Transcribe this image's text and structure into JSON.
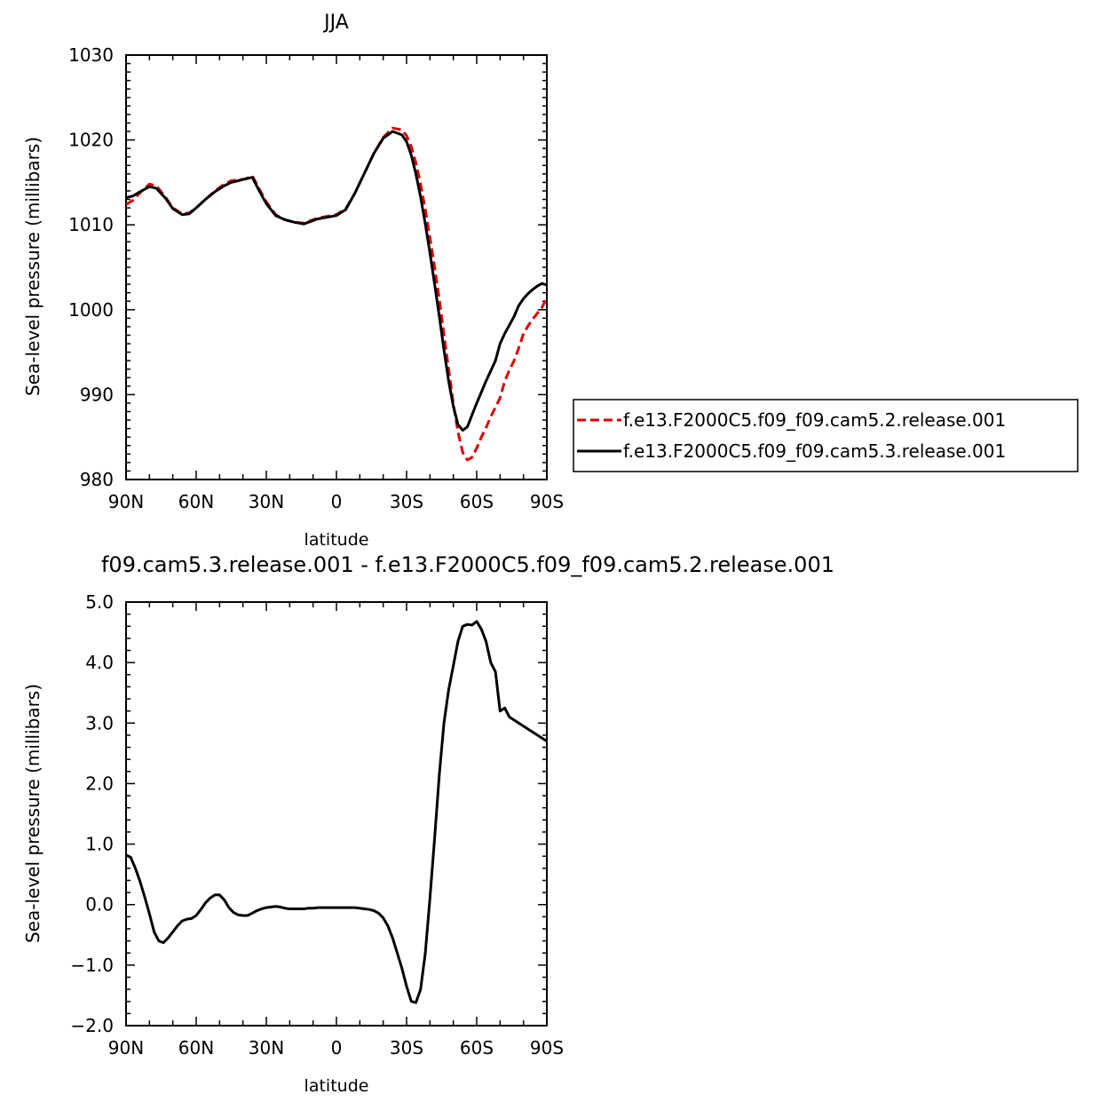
{
  "chart_data": [
    {
      "type": "line",
      "title": "JJA",
      "xlabel": "latitude",
      "ylabel": "Sea-level pressure (millibars)",
      "xlim": [
        90,
        -90
      ],
      "ylim": [
        980,
        1030
      ],
      "xticks": [
        90,
        60,
        30,
        0,
        -30,
        -60,
        -90
      ],
      "xticklabels": [
        "90N",
        "60N",
        "30N",
        "0",
        "30S",
        "60S",
        "90S"
      ],
      "yticks": [
        980,
        990,
        1000,
        1010,
        1020,
        1030
      ],
      "yticklabels": [
        "980",
        "990",
        "1000",
        "1010",
        "1020",
        "1030"
      ],
      "legend_position": "right",
      "series": [
        {
          "name": "f.e13.F2000C5.f09_f09.cam5.2.release.001",
          "color": "#dd0000",
          "dash": "dashed",
          "x": [
            90,
            87,
            84,
            80,
            77,
            73,
            70,
            66,
            63,
            60,
            56,
            52,
            48,
            45,
            42,
            39,
            36,
            33,
            30,
            26,
            22,
            18,
            14,
            12,
            8,
            4,
            0,
            -4,
            -8,
            -12,
            -16,
            -20,
            -24,
            -28,
            -30,
            -32,
            -34,
            -36,
            -38,
            -40,
            -42,
            -44,
            -46,
            -48,
            -50,
            -52,
            -54,
            -56,
            -58,
            -60,
            -62,
            -64,
            -66,
            -68,
            -70,
            -72,
            -74,
            -76,
            -78,
            -80,
            -82,
            -84,
            -86,
            -88,
            -90
          ],
          "y": [
            1012.4,
            1012.9,
            1013.8,
            1014.8,
            1014.6,
            1013.2,
            1012.0,
            1011.3,
            1011.4,
            1012.0,
            1013.0,
            1014.0,
            1014.8,
            1015.2,
            1015.3,
            1015.4,
            1015.8,
            1014.2,
            1012.7,
            1011.2,
            1010.6,
            1010.3,
            1010.2,
            1010.4,
            1010.8,
            1011.0,
            1011.2,
            1011.9,
            1013.8,
            1016.1,
            1018.4,
            1020.3,
            1021.4,
            1021.2,
            1020.5,
            1019.2,
            1017.3,
            1014.8,
            1011.8,
            1008.5,
            1005.0,
            1001.2,
            997.1,
            993.0,
            988.9,
            985.6,
            983.2,
            982.3,
            982.6,
            983.7,
            985.0,
            986.1,
            987.4,
            988.5,
            989.6,
            991.6,
            992.9,
            994.0,
            995.5,
            997.2,
            998.1,
            998.9,
            999.6,
            1000.3,
            1001.4
          ]
        },
        {
          "name": "f.e13.F2000C5.f09_f09.cam5.3.release.001",
          "color": "#000000",
          "dash": "solid",
          "x": [
            90,
            87,
            84,
            80,
            77,
            73,
            70,
            66,
            63,
            60,
            56,
            52,
            48,
            45,
            42,
            39,
            36,
            33,
            30,
            26,
            22,
            18,
            14,
            12,
            8,
            4,
            0,
            -4,
            -8,
            -12,
            -16,
            -20,
            -24,
            -28,
            -30,
            -32,
            -34,
            -36,
            -38,
            -40,
            -42,
            -44,
            -46,
            -48,
            -50,
            -52,
            -54,
            -56,
            -58,
            -60,
            -62,
            -64,
            -66,
            -68,
            -70,
            -72,
            -74,
            -76,
            -78,
            -80,
            -82,
            -84,
            -86,
            -88,
            -90
          ],
          "y": [
            1013.2,
            1013.4,
            1013.9,
            1014.5,
            1014.3,
            1013.1,
            1011.9,
            1011.2,
            1011.3,
            1012.0,
            1013.0,
            1013.9,
            1014.6,
            1015.0,
            1015.2,
            1015.4,
            1015.6,
            1014.0,
            1012.5,
            1011.1,
            1010.6,
            1010.3,
            1010.1,
            1010.3,
            1010.7,
            1010.9,
            1011.1,
            1011.8,
            1013.8,
            1016.1,
            1018.4,
            1020.2,
            1021.0,
            1020.6,
            1019.8,
            1018.2,
            1016.0,
            1013.3,
            1010.1,
            1006.7,
            1003.0,
            999.2,
            995.3,
            991.6,
            988.6,
            986.5,
            985.8,
            986.2,
            987.6,
            989.0,
            990.3,
            991.6,
            992.8,
            994.0,
            996.0,
            997.2,
            998.2,
            999.2,
            1000.5,
            1001.3,
            1001.9,
            1002.4,
            1002.8,
            1003.1,
            1002.9
          ]
        }
      ]
    },
    {
      "type": "line",
      "title": "f09.cam5.3.release.001 - f.e13.F2000C5.f09_f09.cam5.2.release.001",
      "xlabel": "latitude",
      "ylabel": "Sea-level pressure (millibars)",
      "xlim": [
        90,
        -90
      ],
      "ylim": [
        -2.0,
        5.0
      ],
      "xticks": [
        90,
        60,
        30,
        0,
        -30,
        -60,
        -90
      ],
      "xticklabels": [
        "90N",
        "60N",
        "30N",
        "0",
        "30S",
        "60S",
        "90S"
      ],
      "yticks": [
        -2.0,
        -1.0,
        0.0,
        1.0,
        2.0,
        3.0,
        4.0,
        5.0
      ],
      "yticklabels": [
        "-2.0",
        "-1.0",
        "0.0",
        "1.0",
        "2.0",
        "3.0",
        "4.0",
        "5.0"
      ],
      "series": [
        {
          "color": "#000000",
          "dash": "solid",
          "x": [
            90,
            88,
            86,
            84,
            82,
            80,
            78,
            76,
            74,
            72,
            70,
            68,
            66,
            64,
            62,
            60,
            58,
            56,
            54,
            52,
            50,
            48,
            46,
            44,
            42,
            40,
            38,
            36,
            34,
            32,
            30,
            28,
            26,
            24,
            22,
            20,
            18,
            16,
            14,
            12,
            10,
            8,
            6,
            4,
            2,
            0,
            -2,
            -4,
            -6,
            -8,
            -10,
            -12,
            -14,
            -16,
            -18,
            -20,
            -22,
            -24,
            -26,
            -28,
            -30,
            -32,
            -34,
            -36,
            -38,
            -40,
            -42,
            -44,
            -46,
            -48,
            -50,
            -52,
            -54,
            -56,
            -58,
            -60,
            -62,
            -64,
            -66,
            -68,
            -70,
            -72,
            -74,
            -76,
            -78,
            -80,
            -82,
            -84,
            -86,
            -88,
            -90
          ],
          "y": [
            0.82,
            0.78,
            0.6,
            0.38,
            0.12,
            -0.15,
            -0.45,
            -0.6,
            -0.63,
            -0.55,
            -0.45,
            -0.35,
            -0.27,
            -0.24,
            -0.23,
            -0.18,
            -0.08,
            0.03,
            0.11,
            0.16,
            0.16,
            0.08,
            -0.05,
            -0.13,
            -0.17,
            -0.18,
            -0.18,
            -0.14,
            -0.1,
            -0.07,
            -0.05,
            -0.04,
            -0.03,
            -0.04,
            -0.06,
            -0.07,
            -0.07,
            -0.07,
            -0.07,
            -0.06,
            -0.06,
            -0.05,
            -0.05,
            -0.05,
            -0.05,
            -0.05,
            -0.05,
            -0.05,
            -0.05,
            -0.05,
            -0.06,
            -0.07,
            -0.08,
            -0.1,
            -0.14,
            -0.22,
            -0.35,
            -0.55,
            -0.8,
            -1.05,
            -1.35,
            -1.6,
            -1.62,
            -1.4,
            -0.8,
            0.1,
            1.1,
            2.15,
            3.0,
            3.55,
            3.95,
            4.35,
            4.6,
            4.63,
            4.62,
            4.68,
            4.55,
            4.35,
            4.0,
            3.85,
            3.2,
            3.25,
            3.1,
            3.05,
            3.0,
            2.95,
            2.9,
            2.85,
            2.8,
            2.75,
            2.7
          ]
        }
      ]
    }
  ]
}
